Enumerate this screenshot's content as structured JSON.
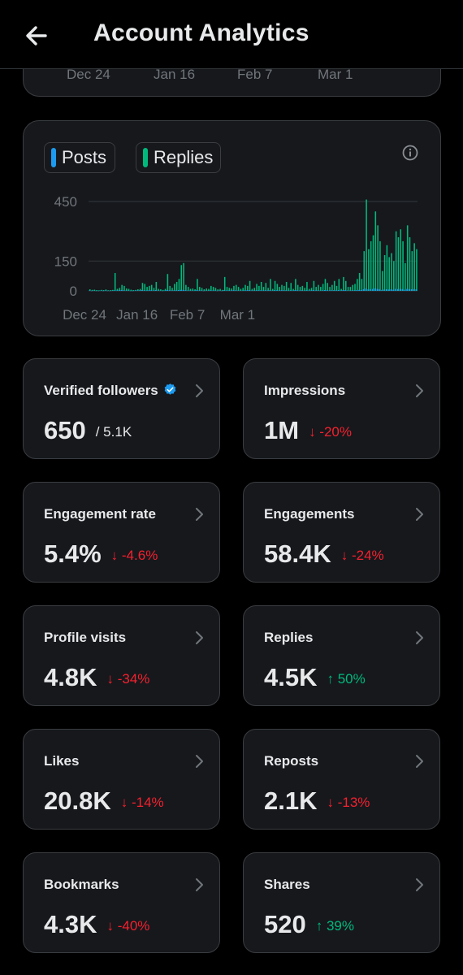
{
  "header": {
    "title": "Account Analytics"
  },
  "top_chart": {
    "tick_labels": [
      "Dec 24",
      "Jan 16",
      "Feb 7",
      "Mar 1"
    ]
  },
  "chart_data": {
    "type": "bar",
    "legend": [
      {
        "name": "Posts",
        "color": "#1d9bf0"
      },
      {
        "name": "Replies",
        "color": "#00ba7c"
      }
    ],
    "y_ticks": [
      0,
      150,
      450
    ],
    "ylim": [
      0,
      450
    ],
    "x_tick_labels": [
      "Dec 24",
      "Jan 16",
      "Feb 7",
      "Mar 1"
    ],
    "x_tick_positions": [
      0,
      23,
      45,
      67
    ],
    "series": [
      {
        "name": "Replies",
        "values": [
          8,
          5,
          6,
          4,
          3,
          5,
          4,
          7,
          3,
          4,
          5,
          90,
          10,
          15,
          30,
          25,
          12,
          10,
          6,
          4,
          5,
          8,
          10,
          40,
          35,
          20,
          25,
          30,
          15,
          45,
          10,
          8,
          5,
          10,
          85,
          25,
          15,
          35,
          45,
          60,
          130,
          140,
          30,
          20,
          10,
          12,
          8,
          60,
          20,
          15,
          8,
          12,
          10,
          25,
          20,
          15,
          8,
          10,
          5,
          70,
          20,
          15,
          12,
          25,
          30,
          20,
          10,
          15,
          30,
          25,
          50,
          10,
          15,
          35,
          25,
          45,
          20,
          40,
          15,
          60,
          10,
          50,
          35,
          20,
          30,
          25,
          45,
          15,
          40,
          10,
          60,
          30,
          20,
          25,
          15,
          45,
          10,
          15,
          50,
          20,
          30,
          20,
          35,
          60,
          40,
          20,
          30,
          50,
          25,
          60,
          10,
          70,
          50,
          20,
          20,
          30,
          35,
          60,
          90,
          60,
          200,
          460,
          210,
          250,
          280,
          400,
          330,
          250,
          100,
          180,
          230,
          170,
          190,
          150,
          300,
          270,
          310,
          250,
          140,
          330,
          270,
          200,
          240,
          210
        ]
      },
      {
        "name": "Posts",
        "values": [
          2,
          1,
          2,
          1,
          1,
          2,
          1,
          2,
          1,
          1,
          2,
          3,
          2,
          3,
          4,
          3,
          2,
          2,
          1,
          1,
          2,
          2,
          3,
          4,
          3,
          2,
          3,
          3,
          2,
          4,
          2,
          2,
          1,
          2,
          4,
          3,
          2,
          3,
          3,
          4,
          5,
          5,
          3,
          2,
          2,
          2,
          2,
          4,
          2,
          2,
          1,
          2,
          2,
          3,
          2,
          2,
          1,
          2,
          1,
          4,
          2,
          2,
          2,
          3,
          3,
          2,
          2,
          2,
          3,
          3,
          4,
          2,
          2,
          3,
          3,
          3,
          2,
          3,
          2,
          4,
          2,
          4,
          3,
          2,
          3,
          3,
          3,
          2,
          3,
          2,
          4,
          3,
          2,
          3,
          2,
          3,
          2,
          2,
          4,
          2,
          3,
          2,
          3,
          4,
          3,
          2,
          3,
          4,
          3,
          4,
          2,
          4,
          4,
          2,
          2,
          3,
          3,
          4,
          5,
          4,
          8,
          12,
          8,
          9,
          10,
          12,
          10,
          9,
          5,
          7,
          8,
          7,
          8,
          6,
          10,
          9,
          10,
          9,
          6,
          10,
          9,
          8,
          9,
          8
        ]
      }
    ]
  },
  "stats": [
    {
      "label": "Verified followers",
      "value": "650",
      "total": "/ 5.1K",
      "verified": true
    },
    {
      "label": "Impressions",
      "value": "1M",
      "change": "↓ -20%",
      "trend": "down"
    },
    {
      "label": "Engagement rate",
      "value": "5.4%",
      "change": "↓ -4.6%",
      "trend": "down"
    },
    {
      "label": "Engagements",
      "value": "58.4K",
      "change": "↓ -24%",
      "trend": "down"
    },
    {
      "label": "Profile visits",
      "value": "4.8K",
      "change": "↓ -34%",
      "trend": "down"
    },
    {
      "label": "Replies",
      "value": "4.5K",
      "change": "↑ 50%",
      "trend": "up"
    },
    {
      "label": "Likes",
      "value": "20.8K",
      "change": "↓ -14%",
      "trend": "down"
    },
    {
      "label": "Reposts",
      "value": "2.1K",
      "change": "↓ -13%",
      "trend": "down"
    },
    {
      "label": "Bookmarks",
      "value": "4.3K",
      "change": "↓ -40%",
      "trend": "down"
    },
    {
      "label": "Shares",
      "value": "520",
      "change": "↑ 39%",
      "trend": "up"
    }
  ],
  "colors": {
    "down": "#f4212e",
    "up": "#00ba7c",
    "verified": "#1d9bf0"
  }
}
